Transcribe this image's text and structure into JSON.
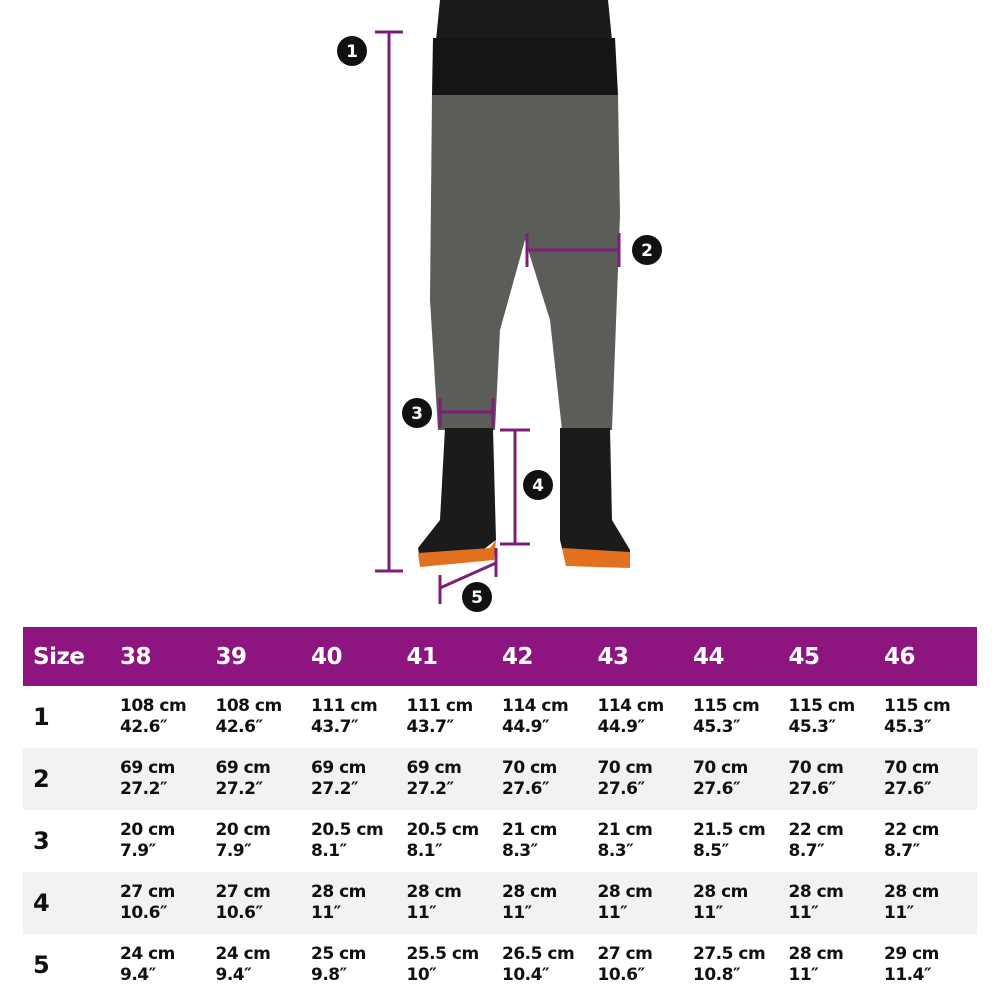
{
  "colors": {
    "header_bg": "#8e1580",
    "measure_line": "#7d1f78",
    "alt_row": "#f2f2f2"
  },
  "figure": {
    "markers": [
      "1",
      "2",
      "3",
      "4",
      "5"
    ]
  },
  "table": {
    "header_label": "Size",
    "sizes": [
      "38",
      "39",
      "40",
      "41",
      "42",
      "43",
      "44",
      "45",
      "46"
    ],
    "rows": [
      {
        "label": "1",
        "cells": [
          [
            "108 cm",
            "42.6″"
          ],
          [
            "108 cm",
            "42.6″"
          ],
          [
            "111 cm",
            "43.7″"
          ],
          [
            "111 cm",
            "43.7″"
          ],
          [
            "114 cm",
            "44.9″"
          ],
          [
            "114 cm",
            "44.9″"
          ],
          [
            "115 cm",
            "45.3″"
          ],
          [
            "115 cm",
            "45.3″"
          ],
          [
            "115 cm",
            "45.3″"
          ]
        ]
      },
      {
        "label": "2",
        "cells": [
          [
            "69 cm",
            "27.2″"
          ],
          [
            "69 cm",
            "27.2″"
          ],
          [
            "69 cm",
            "27.2″"
          ],
          [
            "69 cm",
            "27.2″"
          ],
          [
            "70 cm",
            "27.6″"
          ],
          [
            "70 cm",
            "27.6″"
          ],
          [
            "70 cm",
            "27.6″"
          ],
          [
            "70 cm",
            "27.6″"
          ],
          [
            "70 cm",
            "27.6″"
          ]
        ]
      },
      {
        "label": "3",
        "cells": [
          [
            "20 cm",
            "7.9″"
          ],
          [
            "20 cm",
            "7.9″"
          ],
          [
            "20.5 cm",
            "8.1″"
          ],
          [
            "20.5 cm",
            "8.1″"
          ],
          [
            "21 cm",
            "8.3″"
          ],
          [
            "21 cm",
            "8.3″"
          ],
          [
            "21.5 cm",
            "8.5″"
          ],
          [
            "22 cm",
            "8.7″"
          ],
          [
            "22 cm",
            "8.7″"
          ]
        ]
      },
      {
        "label": "4",
        "cells": [
          [
            "27 cm",
            "10.6″"
          ],
          [
            "27 cm",
            "10.6″"
          ],
          [
            "28 cm",
            "11″"
          ],
          [
            "28 cm",
            "11″"
          ],
          [
            "28 cm",
            "11″"
          ],
          [
            "28 cm",
            "11″"
          ],
          [
            "28 cm",
            "11″"
          ],
          [
            "28 cm",
            "11″"
          ],
          [
            "28 cm",
            "11″"
          ]
        ]
      },
      {
        "label": "5",
        "cells": [
          [
            "24 cm",
            "9.4″"
          ],
          [
            "24 cm",
            "9.4″"
          ],
          [
            "25 cm",
            "9.8″"
          ],
          [
            "25.5 cm",
            "10″"
          ],
          [
            "26.5 cm",
            "10.4″"
          ],
          [
            "27 cm",
            "10.6″"
          ],
          [
            "27.5 cm",
            "10.8″"
          ],
          [
            "28 cm",
            "11″"
          ],
          [
            "29 cm",
            "11.4″"
          ]
        ]
      }
    ]
  }
}
